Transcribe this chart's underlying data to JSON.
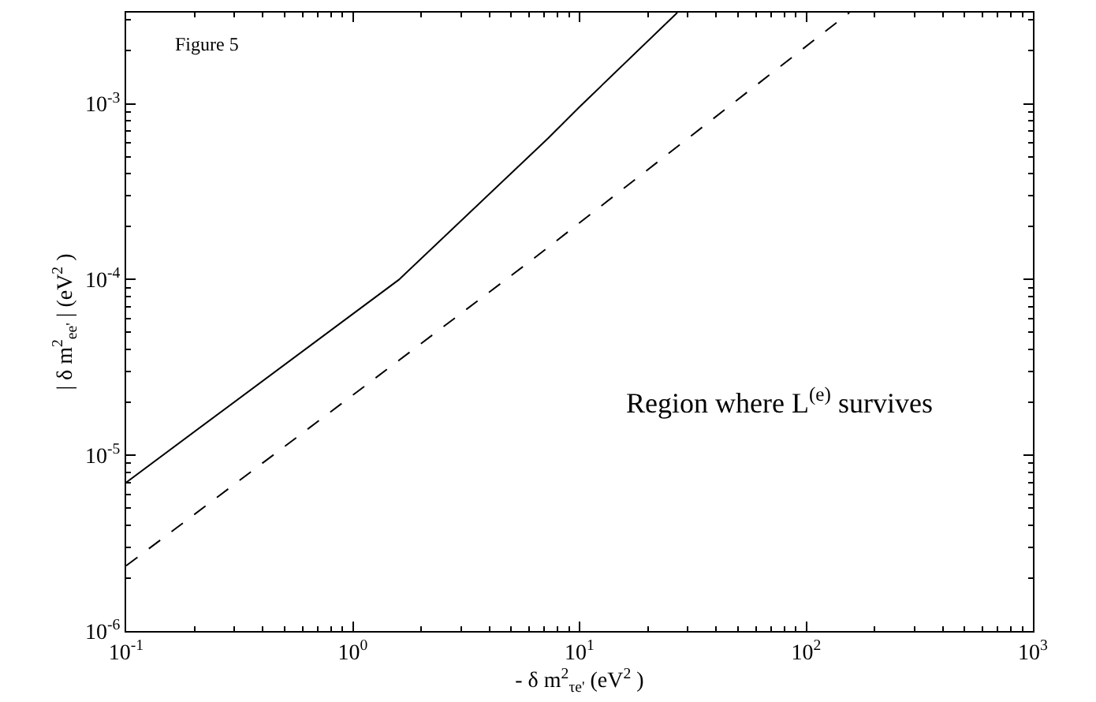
{
  "chart_data": {
    "type": "line",
    "xlabel": "- δ m$^{2}$$_{τe'}$ (eV$^{2}$ )",
    "ylabel": "| δ m$^{2}$$_{ee'}$ | (eV$^{2}$ )",
    "annotations": [
      "Figure 5",
      "Region where L$^{(e)}$ survives"
    ],
    "log": "xy",
    "grid": false,
    "marker": "none",
    "xlim": [
      0.1,
      1000
    ],
    "ylim": [
      1e-06,
      0.0033
    ],
    "xticks": [
      {
        "value": 0.1,
        "label": "10$^{-1}$"
      },
      {
        "value": 1,
        "label": "10$^{0}$"
      },
      {
        "value": 10,
        "label": "10$^{1}$"
      },
      {
        "value": 100,
        "label": "10$^{2}$"
      },
      {
        "value": 1000,
        "label": "10$^{3}$"
      }
    ],
    "yticks": [
      {
        "value": 1e-06,
        "label": "10$^{-6}$"
      },
      {
        "value": 1e-05,
        "label": "10$^{-5}$"
      },
      {
        "value": 0.0001,
        "label": "10$^{-4}$"
      },
      {
        "value": 0.001,
        "label": "10$^{-3}$"
      }
    ],
    "series": [
      {
        "color": "#000000",
        "line_style": "solid",
        "x": [
          0.1,
          1.6,
          7.3,
          10,
          27
        ],
        "values": [
          7e-06,
          0.0001,
          0.00064,
          0.00096,
          0.0033
        ]
      },
      {
        "color": "#000000",
        "line_style": "dashed",
        "x": [
          0.1,
          1,
          6.2,
          155
        ],
        "values": [
          2.35e-06,
          2.2e-05,
          0.00013,
          0.0033
        ]
      }
    ]
  }
}
